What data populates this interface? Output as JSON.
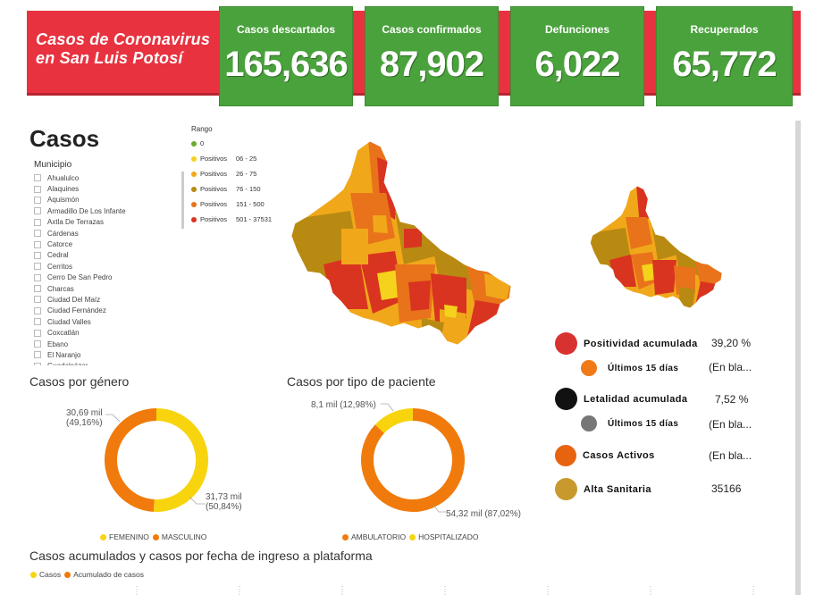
{
  "banner": {
    "title_line1": "Casos de Coronavirus",
    "title_line2": "en San Luis Potosí",
    "cards": [
      {
        "label": "Casos descartados",
        "value": "165,636"
      },
      {
        "label": "Casos confirmados",
        "value": "87,902"
      },
      {
        "label": "Defunciones",
        "value": "6,022"
      },
      {
        "label": "Recuperados",
        "value": "65,772"
      }
    ]
  },
  "casos": {
    "title": "Casos",
    "municipio_label": "Municipio",
    "municipios": [
      "Ahualulco",
      "Alaquines",
      "Aquismón",
      "Armadillo De Los Infante",
      "Axtla De Terrazas",
      "Cárdenas",
      "Catorce",
      "Cedral",
      "Cerritos",
      "Cerro De San Pedro",
      "Charcas",
      "Ciudad Del Maíz",
      "Ciudad Fernández",
      "Ciudad Valles",
      "Coxcatlán",
      "Ebano",
      "El Naranjo",
      "Guadalcázar"
    ]
  },
  "rango": {
    "title": "Rango",
    "items": [
      {
        "label": "0",
        "range": "",
        "color": "#6aaa2c"
      },
      {
        "label": "Positivos",
        "range": "06 - 25",
        "color": "#f5d21b"
      },
      {
        "label": "Positivos",
        "range": "26 - 75",
        "color": "#f0a81a"
      },
      {
        "label": "Positivos",
        "range": "76 - 150",
        "color": "#b98a12"
      },
      {
        "label": "Positivos",
        "range": "151 - 500",
        "color": "#e8731a"
      },
      {
        "label": "Positivos",
        "range": "501 - 37531",
        "color": "#d93420"
      }
    ]
  },
  "indicators": [
    {
      "label": "Positividad acumulada",
      "value": "39,20 %",
      "color": "#d93030"
    },
    {
      "label": "Últimos 15 días",
      "value": "(En bla...",
      "color": "#f07a18"
    },
    {
      "label": "Letalidad acumulada",
      "value": "7,52 %",
      "color": "#111111"
    },
    {
      "label": "Últimos 15 días",
      "value": "(En bla...",
      "color": "#777777"
    },
    {
      "label": "Casos Activos",
      "value": "(En bla...",
      "color": "#e8630f"
    },
    {
      "label": "Alta Sanitaria",
      "value": "35166",
      "color": "#c89a2e"
    }
  ],
  "chart_data": [
    {
      "type": "pie",
      "title": "Casos por género",
      "categories": [
        "FEMENINO",
        "MASCULINO"
      ],
      "values": [
        31.73,
        30.69
      ],
      "data_labels": [
        "31,73 mil (50,84%)",
        "30,69 mil (49,16%)"
      ],
      "colors": [
        "#f8d40e",
        "#f07b0c"
      ],
      "legend_position": "bottom-left"
    },
    {
      "type": "pie",
      "title": "Casos por tipo de paciente",
      "categories": [
        "AMBULATORIO",
        "HOSPITALIZADO"
      ],
      "values": [
        54.32,
        8.1
      ],
      "data_labels": [
        "54,32 mil (87,02%)",
        "8,1 mil (12,98%)"
      ],
      "colors": [
        "#f07b0c",
        "#f8d40e"
      ],
      "legend_position": "bottom-left"
    },
    {
      "type": "bar",
      "title": "Casos acumulados y casos por fecha de ingreso a plataforma",
      "series": [
        {
          "name": "Casos",
          "color": "#f8d40e"
        },
        {
          "name": "Acumulado de casos",
          "color": "#f07b0c"
        }
      ],
      "legend_position": "top-left"
    }
  ]
}
